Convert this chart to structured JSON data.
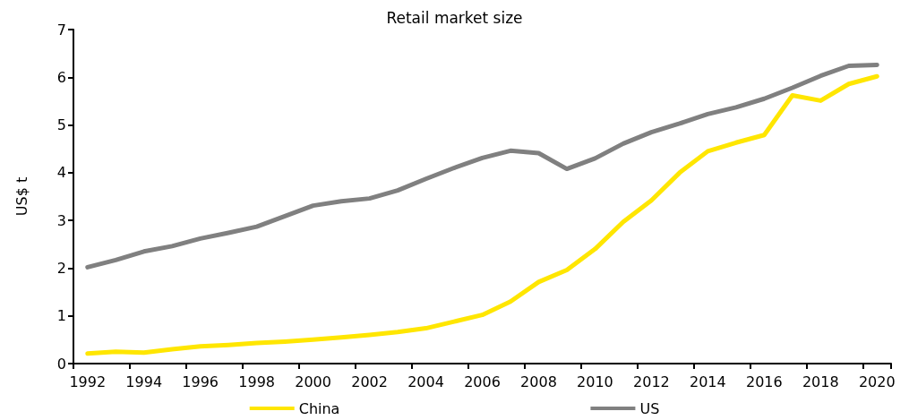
{
  "chart_data": {
    "type": "line",
    "title": "Retail market size",
    "ylabel": "US$ t",
    "categories": [
      "1992",
      null,
      "1994",
      null,
      "1996",
      null,
      "1998",
      null,
      "2000",
      null,
      "2002",
      null,
      "2004",
      null,
      "2006",
      null,
      "2008",
      null,
      "2010",
      null,
      "2012",
      null,
      "2014",
      null,
      "2016",
      null,
      "2018",
      null,
      "2020"
    ],
    "series": [
      {
        "name": "China",
        "color": "#ffe600",
        "values": [
          0.21,
          0.25,
          0.23,
          0.3,
          0.36,
          0.39,
          0.43,
          0.46,
          0.5,
          0.55,
          0.6,
          0.66,
          0.74,
          0.88,
          1.02,
          1.3,
          1.71,
          1.96,
          2.4,
          2.97,
          3.42,
          4.0,
          4.45,
          4.63,
          4.79,
          5.62,
          5.51,
          5.86,
          6.02
        ]
      },
      {
        "name": "US",
        "color": "#808080",
        "values": [
          2.02,
          2.17,
          2.35,
          2.46,
          2.62,
          2.74,
          2.87,
          3.09,
          3.31,
          3.4,
          3.46,
          3.63,
          3.87,
          4.1,
          4.31,
          4.46,
          4.41,
          4.08,
          4.3,
          4.61,
          4.85,
          5.03,
          5.23,
          5.37,
          5.55,
          5.78,
          6.03,
          6.24,
          6.26
        ]
      }
    ],
    "ylim": [
      0,
      7
    ],
    "yticks": [
      0,
      1,
      2,
      3,
      4,
      5,
      6,
      7
    ],
    "grid": false,
    "legend": "bottom",
    "marker": "none",
    "line_style": "solid"
  }
}
